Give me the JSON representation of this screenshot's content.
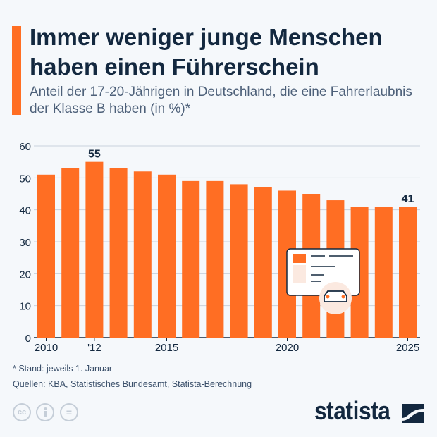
{
  "title": "Immer weniger junge Menschen haben einen Führerschein",
  "subtitle": "Anteil der 17-20-Jährigen in Deutschland, die eine Fahrerlaubnis der Klasse B haben (in %)*",
  "footnote": "* Stand: jeweils 1. Januar",
  "source": "Quellen: KBA, Statistisches Bundesamt, Statista-Berechnung",
  "logo": "statista",
  "license_icons": [
    "cc-icon",
    "attribution-icon",
    "no-derivatives-icon"
  ],
  "license_labels": {
    "cc": "cc",
    "nd": "="
  },
  "colors": {
    "bar": "#ff6e23",
    "text": "#13283f",
    "grid": "#c9d2dc"
  },
  "chart_data": {
    "type": "bar",
    "categories": [
      "2010",
      "2011",
      "2012",
      "2013",
      "2014",
      "2015",
      "2016",
      "2017",
      "2018",
      "2019",
      "2020",
      "2021",
      "2022",
      "2023",
      "2024",
      "2025"
    ],
    "tick_labels": [
      "2010",
      "",
      "'12",
      "",
      "",
      "2015",
      "",
      "",
      "",
      "",
      "2020",
      "",
      "",
      "",
      "",
      "2025"
    ],
    "values": [
      51,
      53,
      55,
      53,
      52,
      51,
      49,
      49,
      48,
      47,
      46,
      45,
      43,
      41,
      41,
      41
    ],
    "data_labels": {
      "2": "55",
      "15": "41"
    },
    "ylim": [
      0,
      60
    ],
    "yticks": [
      0,
      10,
      20,
      30,
      40,
      50,
      60
    ],
    "grid": true,
    "xlabel": "",
    "ylabel": ""
  }
}
